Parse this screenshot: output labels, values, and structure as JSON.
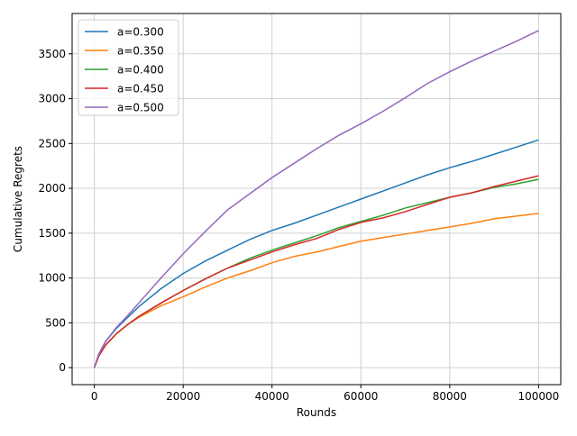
{
  "chart_data": {
    "type": "line",
    "xlabel": "Rounds",
    "ylabel": "Cumulative Regrets",
    "x": [
      0,
      1000,
      2500,
      5000,
      7500,
      10000,
      15000,
      20000,
      25000,
      30000,
      35000,
      40000,
      45000,
      50000,
      55000,
      60000,
      65000,
      70000,
      75000,
      80000,
      85000,
      90000,
      95000,
      100000
    ],
    "series": [
      {
        "name": "a=0.300",
        "color": "#1f77b4",
        "values": [
          0,
          150,
          290,
          440,
          560,
          680,
          880,
          1050,
          1190,
          1310,
          1430,
          1530,
          1610,
          1700,
          1790,
          1880,
          1970,
          2060,
          2150,
          2230,
          2300,
          2380,
          2460,
          2540
        ]
      },
      {
        "name": "a=0.350",
        "color": "#ff7f0e",
        "values": [
          0,
          130,
          250,
          380,
          480,
          560,
          690,
          790,
          900,
          1000,
          1080,
          1170,
          1240,
          1290,
          1350,
          1410,
          1450,
          1490,
          1530,
          1570,
          1610,
          1660,
          1690,
          1720
        ]
      },
      {
        "name": "a=0.400",
        "color": "#2ca02c",
        "values": [
          0,
          130,
          250,
          380,
          480,
          570,
          720,
          860,
          990,
          1110,
          1220,
          1310,
          1390,
          1470,
          1560,
          1630,
          1700,
          1780,
          1840,
          1900,
          1950,
          2010,
          2050,
          2100
        ]
      },
      {
        "name": "a=0.450",
        "color": "#d62728",
        "values": [
          0,
          130,
          250,
          380,
          480,
          570,
          720,
          860,
          990,
          1110,
          1200,
          1290,
          1370,
          1440,
          1540,
          1620,
          1670,
          1740,
          1820,
          1900,
          1950,
          2020,
          2080,
          2140
        ]
      },
      {
        "name": "a=0.500",
        "color": "#9467bd",
        "values": [
          0,
          150,
          290,
          450,
          580,
          720,
          1000,
          1270,
          1520,
          1760,
          1940,
          2120,
          2280,
          2440,
          2590,
          2720,
          2860,
          3010,
          3170,
          3300,
          3420,
          3530,
          3640,
          3760
        ]
      }
    ],
    "xlim": [
      -5000,
      105000
    ],
    "ylim": [
      -190,
      3950
    ],
    "xticks": [
      0,
      20000,
      40000,
      60000,
      80000,
      100000
    ],
    "yticks": [
      0,
      500,
      1000,
      1500,
      2000,
      2500,
      3000,
      3500
    ],
    "grid": true,
    "legend": "upper-left"
  }
}
